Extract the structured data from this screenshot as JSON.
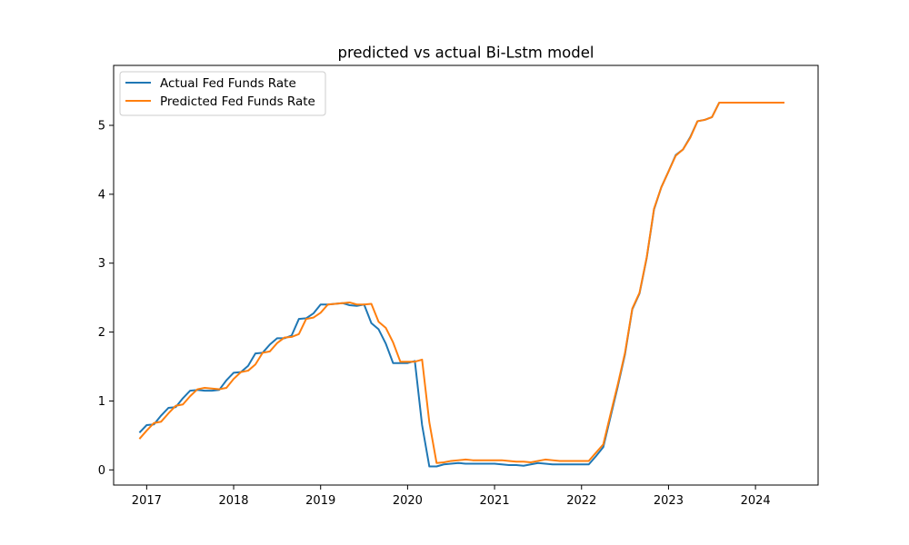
{
  "chart_data": {
    "type": "line",
    "title": "predicted vs actual Bi-Lstm model",
    "xlabel": "",
    "ylabel": "",
    "xlim": [
      2016.62,
      2024.72
    ],
    "ylim": [
      -0.22,
      5.87
    ],
    "xticks": [
      2017,
      2018,
      2019,
      2020,
      2021,
      2022,
      2023,
      2024
    ],
    "xtick_labels": [
      "2017",
      "2018",
      "2019",
      "2020",
      "2021",
      "2022",
      "2023",
      "2024"
    ],
    "yticks": [
      0,
      1,
      2,
      3,
      4,
      5
    ],
    "ytick_labels": [
      "0",
      "1",
      "2",
      "3",
      "4",
      "5"
    ],
    "grid": false,
    "legend_position": "upper-left",
    "series": [
      {
        "name": "Actual Fed Funds Rate",
        "color": "#1f77b4",
        "x": [
          "2016-12",
          "2017-01",
          "2017-02",
          "2017-03",
          "2017-04",
          "2017-05",
          "2017-06",
          "2017-07",
          "2017-08",
          "2017-09",
          "2017-10",
          "2017-11",
          "2017-12",
          "2018-01",
          "2018-02",
          "2018-03",
          "2018-04",
          "2018-05",
          "2018-06",
          "2018-07",
          "2018-08",
          "2018-09",
          "2018-10",
          "2018-11",
          "2018-12",
          "2019-01",
          "2019-02",
          "2019-03",
          "2019-04",
          "2019-05",
          "2019-06",
          "2019-07",
          "2019-08",
          "2019-09",
          "2019-10",
          "2019-11",
          "2019-12",
          "2020-01",
          "2020-02",
          "2020-03",
          "2020-04",
          "2020-05",
          "2020-06",
          "2020-07",
          "2020-08",
          "2020-09",
          "2020-10",
          "2020-11",
          "2020-12",
          "2021-01",
          "2021-02",
          "2021-03",
          "2021-04",
          "2021-05",
          "2021-06",
          "2021-07",
          "2021-08",
          "2021-09",
          "2021-10",
          "2021-11",
          "2021-12",
          "2022-01",
          "2022-02",
          "2022-03",
          "2022-04",
          "2022-05",
          "2022-06",
          "2022-07",
          "2022-08",
          "2022-09",
          "2022-10",
          "2022-11",
          "2022-12",
          "2023-01",
          "2023-02",
          "2023-03",
          "2023-04",
          "2023-05",
          "2023-06",
          "2023-07",
          "2023-08"
        ],
        "values": [
          0.54,
          0.65,
          0.66,
          0.79,
          0.9,
          0.91,
          1.04,
          1.15,
          1.16,
          1.15,
          1.15,
          1.16,
          1.3,
          1.41,
          1.42,
          1.51,
          1.69,
          1.7,
          1.82,
          1.91,
          1.91,
          1.95,
          2.19,
          2.2,
          2.27,
          2.4,
          2.4,
          2.41,
          2.42,
          2.39,
          2.38,
          2.4,
          2.13,
          2.04,
          1.83,
          1.55,
          1.55,
          1.55,
          1.58,
          0.65,
          0.05,
          0.05,
          0.08,
          0.09,
          0.1,
          0.09,
          0.09,
          0.09,
          0.09,
          0.09,
          0.08,
          0.07,
          0.07,
          0.06,
          0.08,
          0.1,
          0.09,
          0.08,
          0.08,
          0.08,
          0.08,
          0.08,
          0.08,
          0.2,
          0.33,
          0.77,
          1.21,
          1.68,
          2.33,
          2.56,
          3.08,
          3.78,
          4.1,
          4.33,
          4.57,
          4.65,
          4.83,
          5.06,
          5.08,
          5.12,
          5.33
        ]
      },
      {
        "name": "Predicted Fed Funds Rate",
        "color": "#ff7f0e",
        "x": [
          "2016-12",
          "2017-01",
          "2017-02",
          "2017-03",
          "2017-04",
          "2017-05",
          "2017-06",
          "2017-07",
          "2017-08",
          "2017-09",
          "2017-10",
          "2017-11",
          "2017-12",
          "2018-01",
          "2018-02",
          "2018-03",
          "2018-04",
          "2018-05",
          "2018-06",
          "2018-07",
          "2018-08",
          "2018-09",
          "2018-10",
          "2018-11",
          "2018-12",
          "2019-01",
          "2019-02",
          "2019-03",
          "2019-04",
          "2019-05",
          "2019-06",
          "2019-07",
          "2019-08",
          "2019-09",
          "2019-10",
          "2019-11",
          "2019-12",
          "2020-01",
          "2020-02",
          "2020-03",
          "2020-04",
          "2020-05",
          "2020-06",
          "2020-07",
          "2020-08",
          "2020-09",
          "2020-10",
          "2020-11",
          "2020-12",
          "2021-01",
          "2021-02",
          "2021-03",
          "2021-04",
          "2021-05",
          "2021-06",
          "2021-07",
          "2021-08",
          "2021-09",
          "2021-10",
          "2021-11",
          "2021-12",
          "2022-01",
          "2022-02",
          "2022-03",
          "2022-04",
          "2022-05",
          "2022-06",
          "2022-07",
          "2022-08",
          "2022-09",
          "2022-10",
          "2022-11",
          "2022-12",
          "2023-01",
          "2023-02",
          "2023-03",
          "2023-04",
          "2023-05",
          "2023-06",
          "2023-07",
          "2023-08",
          "2023-09",
          "2023-10",
          "2023-11",
          "2023-12",
          "2024-01",
          "2024-02",
          "2024-03",
          "2024-04",
          "2024-05"
        ],
        "values": [
          0.45,
          0.57,
          0.68,
          0.7,
          0.82,
          0.93,
          0.95,
          1.07,
          1.17,
          1.19,
          1.18,
          1.17,
          1.19,
          1.32,
          1.42,
          1.44,
          1.53,
          1.7,
          1.72,
          1.84,
          1.92,
          1.93,
          1.97,
          2.19,
          2.21,
          2.28,
          2.4,
          2.41,
          2.42,
          2.43,
          2.4,
          2.4,
          2.41,
          2.15,
          2.06,
          1.85,
          1.57,
          1.57,
          1.57,
          1.6,
          0.69,
          0.1,
          0.11,
          0.13,
          0.14,
          0.15,
          0.14,
          0.14,
          0.14,
          0.14,
          0.14,
          0.13,
          0.12,
          0.12,
          0.11,
          0.13,
          0.15,
          0.14,
          0.13,
          0.13,
          0.13,
          0.13,
          0.13,
          0.25,
          0.37,
          0.81,
          1.24,
          1.7,
          2.34,
          2.57,
          3.09,
          3.79,
          4.1,
          4.33,
          4.56,
          4.65,
          4.82,
          5.06,
          5.08,
          5.12,
          5.33,
          5.33,
          5.33,
          5.33,
          5.33,
          5.33,
          5.33,
          5.33,
          5.33,
          5.33
        ]
      }
    ]
  }
}
